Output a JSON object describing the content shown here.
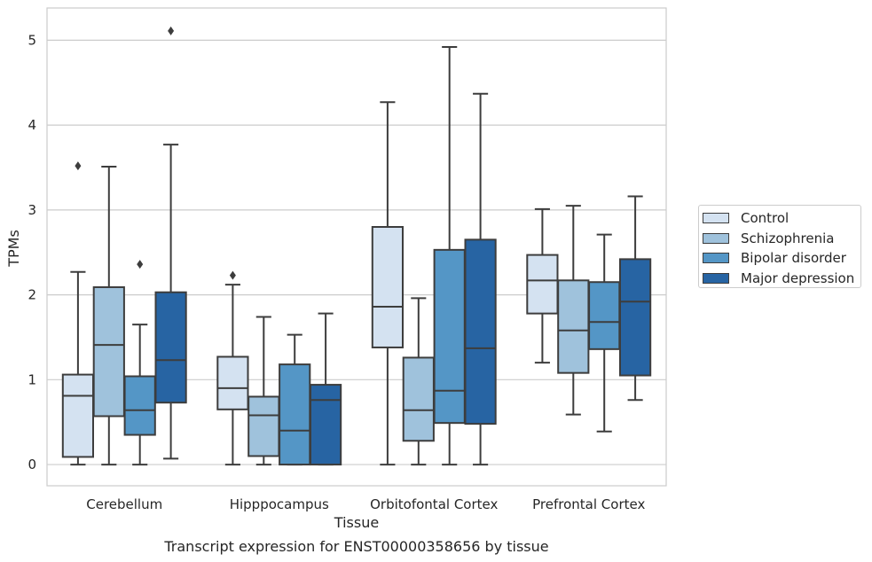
{
  "chart_data": {
    "type": "box",
    "title": "",
    "caption": "Transcript expression for ENST00000358656 by tissue",
    "xlabel": "Tissue",
    "ylabel": "TPMs",
    "ylim": [
      -0.25,
      5.38
    ],
    "yticks": [
      "0",
      "1",
      "2",
      "3",
      "4",
      "5"
    ],
    "grid": "horizontal",
    "legend_position": "right",
    "categories": [
      "Cerebellum",
      "Hipppocampus",
      "Orbitofontal Cortex",
      "Prefrontal Cortex"
    ],
    "series": [
      {
        "name": "Control",
        "color": "#d4e2f1",
        "boxes": [
          {
            "whislo": 0.0,
            "q1": 0.09,
            "med": 0.81,
            "q3": 1.06,
            "whishi": 2.27,
            "fliers": [
              3.52
            ]
          },
          {
            "whislo": 0.0,
            "q1": 0.65,
            "med": 0.9,
            "q3": 1.27,
            "whishi": 2.12,
            "fliers": [
              2.23
            ]
          },
          {
            "whislo": 0.0,
            "q1": 1.38,
            "med": 1.86,
            "q3": 2.8,
            "whishi": 4.27,
            "fliers": []
          },
          {
            "whislo": 1.2,
            "q1": 1.78,
            "med": 2.17,
            "q3": 2.47,
            "whishi": 3.01,
            "fliers": []
          }
        ]
      },
      {
        "name": "Schizophrenia",
        "color": "#9fc2dc",
        "boxes": [
          {
            "whislo": 0.0,
            "q1": 0.57,
            "med": 1.41,
            "q3": 2.09,
            "whishi": 3.51,
            "fliers": []
          },
          {
            "whislo": 0.0,
            "q1": 0.1,
            "med": 0.58,
            "q3": 0.8,
            "whishi": 1.74,
            "fliers": []
          },
          {
            "whislo": 0.0,
            "q1": 0.28,
            "med": 0.64,
            "q3": 1.26,
            "whishi": 1.96,
            "fliers": []
          },
          {
            "whislo": 0.59,
            "q1": 1.08,
            "med": 1.58,
            "q3": 2.17,
            "whishi": 3.05,
            "fliers": []
          }
        ]
      },
      {
        "name": "Bipolar disorder",
        "color": "#5496c6",
        "boxes": [
          {
            "whislo": 0.0,
            "q1": 0.35,
            "med": 0.64,
            "q3": 1.04,
            "whishi": 1.65,
            "fliers": [
              2.36
            ]
          },
          {
            "whislo": 0.0,
            "q1": 0.0,
            "med": 0.4,
            "q3": 1.18,
            "whishi": 1.53,
            "fliers": []
          },
          {
            "whislo": 0.0,
            "q1": 0.49,
            "med": 0.87,
            "q3": 2.53,
            "whishi": 4.92,
            "fliers": []
          },
          {
            "whislo": 0.39,
            "q1": 1.36,
            "med": 1.68,
            "q3": 2.15,
            "whishi": 2.71,
            "fliers": []
          }
        ]
      },
      {
        "name": "Major depression",
        "color": "#2764a3",
        "boxes": [
          {
            "whislo": 0.07,
            "q1": 0.73,
            "med": 1.23,
            "q3": 2.03,
            "whishi": 3.77,
            "fliers": [
              5.11
            ]
          },
          {
            "whislo": 0.0,
            "q1": 0.0,
            "med": 0.76,
            "q3": 0.94,
            "whishi": 1.78,
            "fliers": []
          },
          {
            "whislo": 0.0,
            "q1": 0.48,
            "med": 1.37,
            "q3": 2.65,
            "whishi": 4.37,
            "fliers": []
          },
          {
            "whislo": 0.76,
            "q1": 1.05,
            "med": 1.92,
            "q3": 2.42,
            "whishi": 3.16,
            "fliers": []
          }
        ]
      }
    ]
  }
}
